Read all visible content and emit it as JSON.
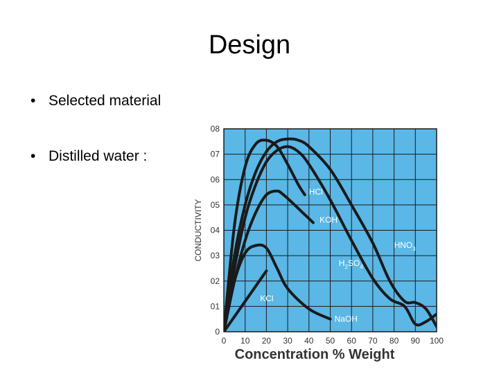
{
  "slide": {
    "title": "Design",
    "bullets": [
      {
        "bullet": "•",
        "text": "Selected material"
      },
      {
        "bullet": "•",
        "text": "Distilled water :"
      }
    ]
  },
  "chart_data": {
    "type": "line",
    "title": "",
    "xlabel": "Concentration % Weight",
    "ylabel": "CONDUCTIVITY",
    "xlim": [
      0,
      100
    ],
    "ylim": [
      0,
      0.8
    ],
    "grid": true,
    "x_ticks": [
      "0",
      "10",
      "20",
      "30",
      "40",
      "50",
      "60",
      "70",
      "80",
      "90",
      "100"
    ],
    "y_ticks": [
      "0",
      "01",
      "02",
      "03",
      "04",
      "05",
      "06",
      "07",
      "08"
    ],
    "background_color": "#5ab7e6",
    "line_color": "#1a1a1a",
    "series": [
      {
        "name": "HCl",
        "x": [
          0,
          5,
          10,
          15,
          20,
          25,
          30,
          35,
          38
        ],
        "y": [
          0,
          0.42,
          0.65,
          0.74,
          0.755,
          0.73,
          0.66,
          0.58,
          0.54
        ]
      },
      {
        "name": "KOH",
        "x": [
          0,
          5,
          10,
          15,
          20,
          25,
          28,
          32,
          37,
          42
        ],
        "y": [
          0,
          0.2,
          0.36,
          0.47,
          0.54,
          0.555,
          0.54,
          0.51,
          0.47,
          0.43
        ]
      },
      {
        "name": "HNO3",
        "x": [
          0,
          5,
          10,
          15,
          20,
          25,
          30,
          35,
          40,
          50,
          60,
          70,
          78,
          85,
          90,
          95,
          100
        ],
        "y": [
          0,
          0.3,
          0.5,
          0.63,
          0.71,
          0.75,
          0.76,
          0.755,
          0.73,
          0.64,
          0.5,
          0.35,
          0.2,
          0.12,
          0.115,
          0.09,
          0.02
        ]
      },
      {
        "name": "H2SO4",
        "x": [
          0,
          5,
          10,
          15,
          20,
          25,
          30,
          35,
          40,
          50,
          60,
          70,
          78,
          85,
          90,
          95,
          100
        ],
        "y": [
          0,
          0.25,
          0.45,
          0.58,
          0.67,
          0.715,
          0.73,
          0.71,
          0.66,
          0.52,
          0.36,
          0.21,
          0.13,
          0.1,
          0.03,
          0.04,
          0.07
        ]
      },
      {
        "name": "NaOH",
        "x": [
          0,
          5,
          10,
          15,
          20,
          25,
          30,
          40,
          50
        ],
        "y": [
          0,
          0.2,
          0.31,
          0.34,
          0.33,
          0.25,
          0.17,
          0.09,
          0.05
        ]
      },
      {
        "name": "KCl",
        "x": [
          0,
          20
        ],
        "y": [
          0,
          0.24
        ]
      }
    ],
    "curve_labels": [
      {
        "text": "HCl",
        "x": 40,
        "y": 0.54
      },
      {
        "text": "KOH",
        "x": 45,
        "y": 0.43
      },
      {
        "text": "HNO",
        "sub": "3",
        "x": 80,
        "y": 0.33
      },
      {
        "text": "H",
        "sub": "2",
        "text2": "SO",
        "sub2": "4",
        "x": 54,
        "y": 0.26
      },
      {
        "text": "KCl",
        "x": 17,
        "y": 0.12
      },
      {
        "text": "NaOH",
        "x": 52,
        "y": 0.04
      }
    ]
  }
}
